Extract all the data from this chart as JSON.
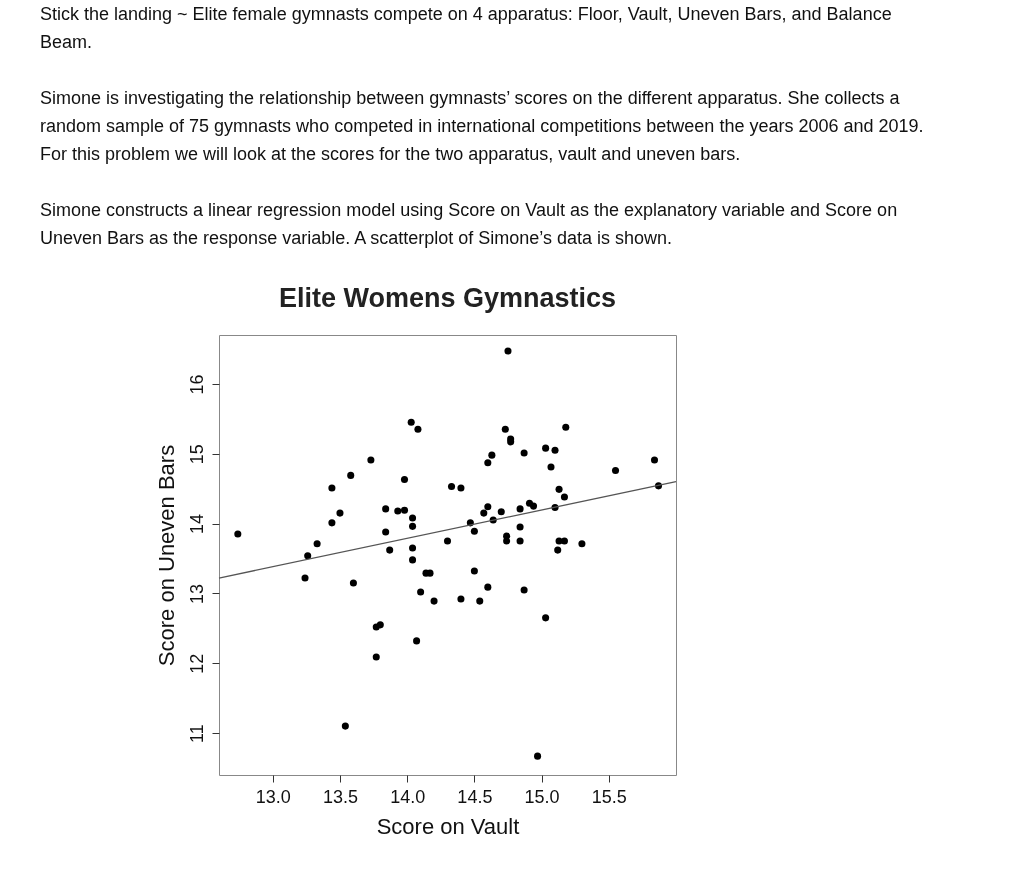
{
  "chart_data": {
    "type": "scatter",
    "title": "Elite Womens Gymnastics",
    "xlabel": "Score on Vault",
    "ylabel": "Score on Uneven Bars",
    "annotations": [
      "Stick the landing ~ Elite female gymnasts compete on 4 apparatus: Floor, Vault, Uneven Bars, and Balance Beam.",
      "Simone is investigating the relationship between gymnasts’ scores on the different apparatus. She collects a random sample of 75 gymnasts who competed in international competitions between the years 2006 and 2019. For this problem we will look at the scores for the two apparatus, vault and uneven bars.",
      "Simone constructs a linear regression model using Score on Vault as the explanatory variable and Score on Uneven Bars as the response variable. A scatterplot of Simone’s data is shown."
    ],
    "series": [
      {
        "color": "#000000",
        "marker": "circle",
        "x": [
          12.74,
          14.03,
          14.08,
          13.73,
          13.58,
          13.44,
          13.98,
          13.84,
          13.93,
          13.98,
          14.04,
          14.04,
          13.5,
          13.44,
          13.84,
          13.33,
          13.87,
          14.04,
          13.26,
          14.75,
          14.73,
          14.77,
          14.77,
          15.18,
          15.03,
          15.1,
          14.87,
          14.63,
          14.6,
          15.07,
          15.55,
          15.84,
          15.87,
          14.33,
          14.4,
          15.13,
          15.17,
          14.91,
          14.94,
          15.1,
          14.84,
          14.7,
          14.6,
          14.57,
          14.64,
          14.47,
          14.5,
          14.84,
          14.74,
          14.74,
          14.84,
          14.3,
          15.13,
          15.17,
          15.3,
          15.12,
          14.04,
          13.24,
          13.6,
          14.14,
          14.17,
          14.5,
          14.6,
          14.1,
          14.2,
          14.4,
          14.54,
          14.87,
          15.03,
          13.77,
          13.8,
          13.77,
          14.07,
          13.54,
          14.97
        ],
        "values": [
          13.85,
          15.45,
          15.35,
          14.91,
          14.69,
          14.51,
          14.63,
          14.21,
          14.18,
          14.19,
          14.08,
          13.96,
          14.15,
          14.01,
          13.88,
          13.71,
          13.62,
          13.65,
          13.54,
          16.47,
          15.35,
          15.21,
          15.17,
          15.38,
          15.08,
          15.05,
          15.01,
          14.98,
          14.87,
          14.81,
          14.76,
          14.91,
          14.54,
          14.53,
          14.51,
          14.49,
          14.38,
          14.29,
          14.25,
          14.23,
          14.21,
          14.17,
          14.24,
          14.15,
          14.05,
          14.01,
          13.89,
          13.95,
          13.82,
          13.75,
          13.75,
          13.75,
          13.75,
          13.75,
          13.71,
          13.62,
          13.48,
          13.22,
          13.15,
          13.29,
          13.29,
          13.32,
          13.09,
          13.02,
          12.89,
          12.92,
          12.89,
          13.05,
          12.65,
          12.52,
          12.55,
          12.09,
          12.32,
          11.1,
          10.67
        ]
      },
      {
        "type": "line",
        "marker": "none",
        "color": "#555555",
        "x": [
          12.6,
          16.0
        ],
        "values": [
          13.22,
          14.6
        ]
      }
    ],
    "xlim": [
      12.6,
      16.0
    ],
    "ylim": [
      10.4,
      16.7
    ],
    "xticks": [
      {
        "value": 13,
        "label": "13.0"
      },
      13.5,
      {
        "value": 14,
        "label": "14.0"
      },
      14.5,
      {
        "value": 15,
        "label": "15.0"
      },
      15.5
    ],
    "yticks": [
      11,
      12,
      13,
      14,
      15,
      16
    ],
    "grid": false
  }
}
